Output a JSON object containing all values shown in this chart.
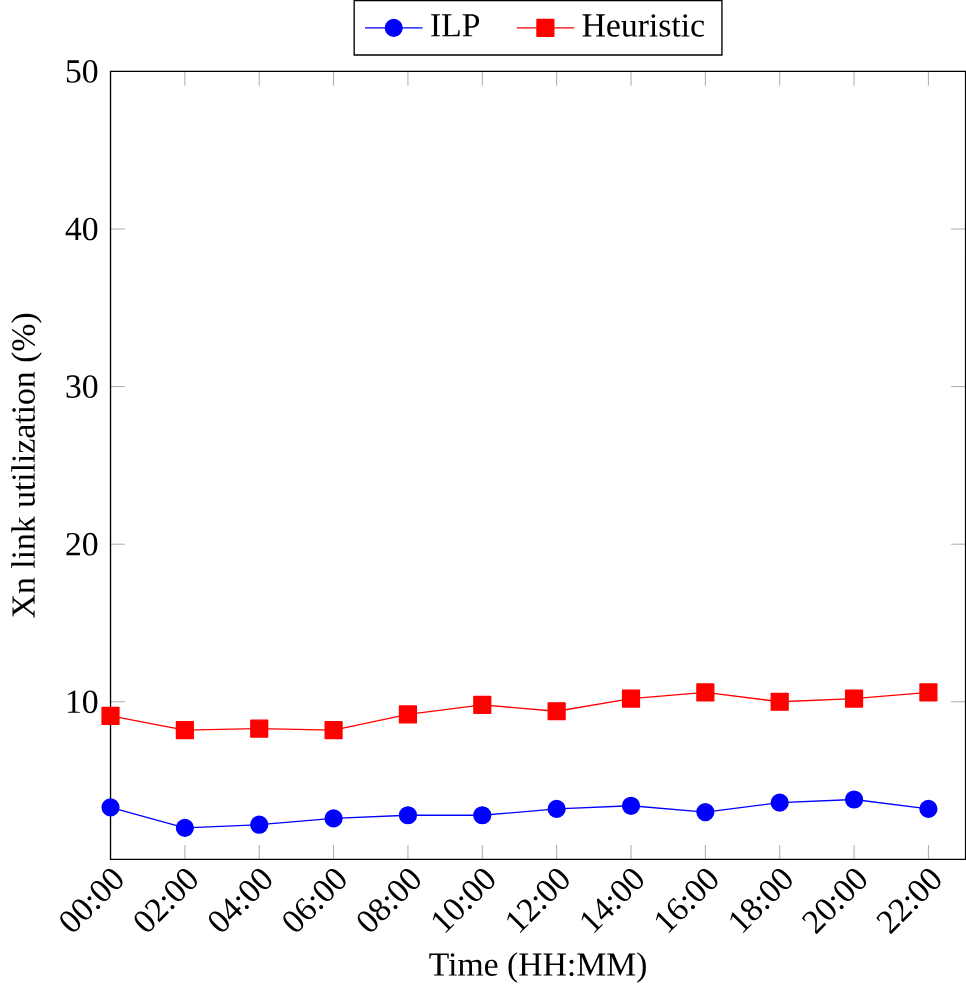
{
  "chart_data": {
    "type": "line",
    "xlabel": "Time (HH:MM)",
    "ylabel": "Xn link utilization (%)",
    "categories": [
      "00:00",
      "02:00",
      "04:00",
      "06:00",
      "08:00",
      "10:00",
      "12:00",
      "14:00",
      "16:00",
      "18:00",
      "20:00",
      "22:00"
    ],
    "series": [
      {
        "name": "ILP",
        "color": "#0000ff",
        "marker": "circle",
        "values": [
          3.3,
          2.0,
          2.2,
          2.6,
          2.8,
          2.8,
          3.2,
          3.4,
          3.0,
          3.6,
          3.8,
          3.2
        ]
      },
      {
        "name": "Heuristic",
        "color": "#ff0000",
        "marker": "square",
        "values": [
          9.1,
          8.2,
          8.3,
          8.2,
          9.2,
          9.8,
          9.4,
          10.2,
          10.6,
          10.0,
          10.2,
          10.6
        ]
      }
    ],
    "ylim": [
      0,
      50
    ],
    "yticks": [
      10,
      20,
      30,
      40,
      50
    ],
    "grid": false,
    "legend": "top",
    "line_style": "solid"
  }
}
